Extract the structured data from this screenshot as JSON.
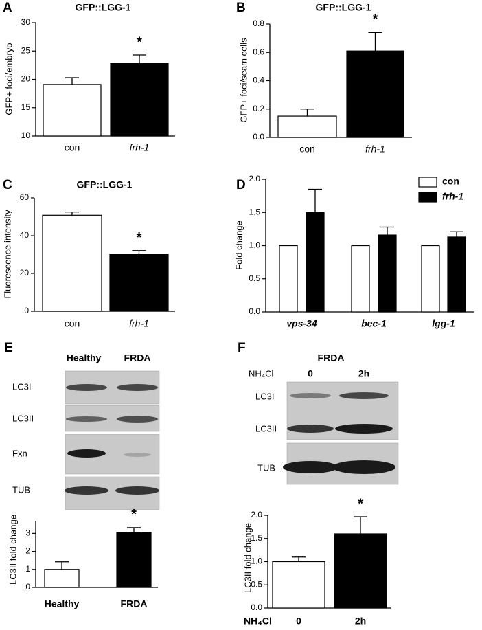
{
  "chart_data": [
    {
      "type": "bar",
      "panel": "A",
      "title": "GFP::LGG-1",
      "ylabel": "GFP+ foci/embryo",
      "categories": [
        "con",
        "frh-1"
      ],
      "values": [
        19.1,
        22.8
      ],
      "errors": [
        1.2,
        1.5
      ],
      "colors": [
        "#ffffff",
        "#000000"
      ],
      "ylim": [
        10,
        30
      ],
      "yticks": [
        10,
        15,
        20,
        25,
        30
      ],
      "annotation": "*"
    },
    {
      "type": "bar",
      "panel": "B",
      "title": "GFP::LGG-1",
      "ylabel": "GFP+ foci/seam cells",
      "categories": [
        "con",
        "frh-1"
      ],
      "values": [
        0.15,
        0.61
      ],
      "errors": [
        0.05,
        0.13
      ],
      "colors": [
        "#ffffff",
        "#000000"
      ],
      "ylim": [
        0,
        0.8
      ],
      "yticks": [
        {
          "value": 0,
          "label": "0.0"
        },
        0.2,
        0.4,
        0.6,
        0.8
      ],
      "annotation": "*"
    },
    {
      "type": "bar",
      "panel": "C",
      "title": "GFP::LGG-1",
      "ylabel": "Fluorescence intensity",
      "categories": [
        "con",
        "frh-1"
      ],
      "values": [
        50.8,
        30.3
      ],
      "errors": [
        1.7,
        1.8
      ],
      "colors": [
        "#ffffff",
        "#000000"
      ],
      "ylim": [
        0,
        60
      ],
      "yticks": [
        0,
        20,
        40,
        60
      ],
      "annotation": "*"
    },
    {
      "type": "grouped-bar",
      "panel": "D",
      "ylabel": "Fold change",
      "categories": [
        "vps-34",
        "bec-1",
        "lgg-1"
      ],
      "series": [
        {
          "name": "con",
          "color": "#ffffff",
          "values": [
            1,
            1,
            1
          ]
        },
        {
          "name": "frh-1",
          "color": "#000000",
          "values": [
            1.5,
            1.16,
            1.13
          ],
          "errors": [
            0.35,
            0.12,
            0.08
          ]
        }
      ],
      "ylim": [
        0,
        2.0
      ],
      "yticks": [
        {
          "value": 0,
          "label": "0.0"
        },
        0.5,
        {
          "value": 1,
          "label": "1.0"
        },
        1.5,
        {
          "value": 2,
          "label": "2.0"
        }
      ]
    },
    {
      "type": "bar",
      "ylabel": "LC3II fold change",
      "categories": [
        "Healthy",
        "FRDA"
      ],
      "values": [
        1.0,
        3.05
      ],
      "errors": [
        0.42,
        0.27
      ],
      "colors": [
        "#ffffff",
        "#000000"
      ],
      "ylim": [
        0,
        3.7
      ],
      "yticks": [
        0,
        1,
        2,
        3
      ],
      "annotation": "*"
    },
    {
      "type": "bar",
      "ylabel": "LC3II fold change",
      "xlabel": "NH₄Cl",
      "categories": [
        "0",
        "2h"
      ],
      "values": [
        1.0,
        1.6
      ],
      "errors": [
        0.1,
        0.37
      ],
      "colors": [
        "#ffffff",
        "#000000"
      ],
      "ylim": [
        0,
        2.0
      ],
      "yticks": [
        {
          "value": 0,
          "label": "0.0"
        },
        0.5,
        {
          "value": 1,
          "label": "1.0"
        },
        1.5,
        {
          "value": 2,
          "label": "2.0"
        }
      ],
      "annotation": "*"
    }
  ],
  "blots": [
    {
      "panel": "E",
      "columns": [
        "Healthy",
        "FRDA"
      ],
      "rows": [
        "LC3I",
        "LC3II",
        "Fxn",
        "TUB"
      ]
    },
    {
      "panel": "F",
      "title": "FRDA",
      "column_label": "NH₄Cl",
      "columns": [
        "0",
        "2h"
      ],
      "rows": [
        "LC3I",
        "LC3II",
        "TUB"
      ]
    }
  ]
}
